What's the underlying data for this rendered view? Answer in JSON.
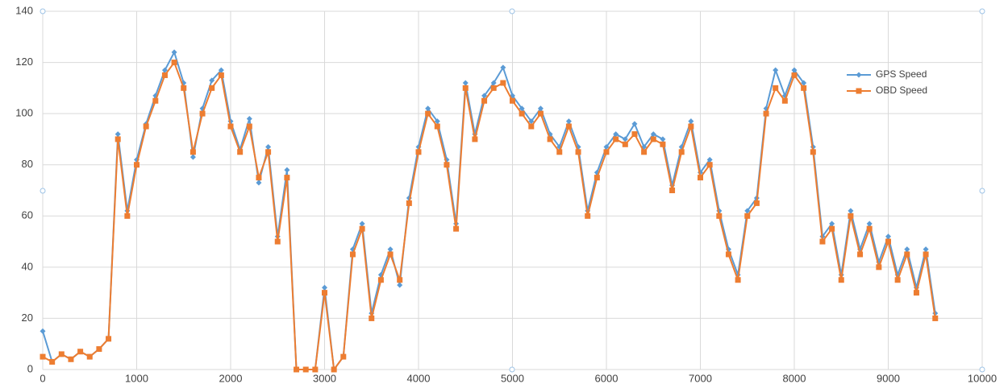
{
  "chart_data": {
    "type": "line",
    "x": [
      0,
      100,
      200,
      300,
      400,
      500,
      600,
      700,
      800,
      900,
      1000,
      1100,
      1200,
      1300,
      1400,
      1500,
      1600,
      1700,
      1800,
      1900,
      2000,
      2100,
      2200,
      2300,
      2400,
      2500,
      2600,
      2700,
      2800,
      2900,
      3000,
      3100,
      3200,
      3300,
      3400,
      3500,
      3600,
      3700,
      3800,
      3900,
      4000,
      4100,
      4200,
      4300,
      4400,
      4500,
      4600,
      4700,
      4800,
      4900,
      5000,
      5100,
      5200,
      5300,
      5400,
      5500,
      5600,
      5700,
      5800,
      5900,
      6000,
      6100,
      6200,
      6300,
      6400,
      6500,
      6600,
      6700,
      6800,
      6900,
      7000,
      7100,
      7200,
      7300,
      7400,
      7500,
      7600,
      7700,
      7800,
      7900,
      8000,
      8100,
      8200,
      8300,
      8400,
      8500,
      8600,
      8700,
      8800,
      8900,
      9000,
      9100,
      9200,
      9300,
      9400,
      9500
    ],
    "series": [
      {
        "name": "GPS Speed",
        "color": "#5b9bd5",
        "marker": "diamond",
        "values": [
          15,
          3,
          6,
          4,
          7,
          5,
          8,
          12,
          92,
          62,
          82,
          96,
          107,
          117,
          124,
          112,
          83,
          102,
          113,
          117,
          97,
          86,
          98,
          73,
          87,
          52,
          78,
          0,
          0,
          0,
          32,
          0,
          5,
          47,
          57,
          22,
          37,
          47,
          33,
          67,
          87,
          102,
          97,
          82,
          57,
          112,
          92,
          107,
          112,
          118,
          107,
          102,
          97,
          102,
          92,
          87,
          97,
          87,
          62,
          77,
          87,
          92,
          90,
          96,
          87,
          92,
          90,
          72,
          87,
          97,
          77,
          82,
          62,
          47,
          37,
          62,
          67,
          102,
          117,
          107,
          117,
          112,
          87,
          52,
          57,
          37,
          62,
          47,
          57,
          42,
          52,
          37,
          47,
          32,
          47,
          22
        ]
      },
      {
        "name": "OBD Speed",
        "color": "#ed7d31",
        "marker": "square",
        "values": [
          5,
          3,
          6,
          4,
          7,
          5,
          8,
          12,
          90,
          60,
          80,
          95,
          105,
          115,
          120,
          110,
          85,
          100,
          110,
          115,
          95,
          85,
          95,
          75,
          85,
          50,
          75,
          0,
          0,
          0,
          30,
          0,
          5,
          45,
          55,
          20,
          35,
          45,
          35,
          65,
          85,
          100,
          95,
          80,
          55,
          110,
          90,
          105,
          110,
          112,
          105,
          100,
          95,
          100,
          90,
          85,
          95,
          85,
          60,
          75,
          85,
          90,
          88,
          92,
          85,
          90,
          88,
          70,
          85,
          95,
          75,
          80,
          60,
          45,
          35,
          60,
          65,
          100,
          110,
          105,
          115,
          110,
          85,
          50,
          55,
          35,
          60,
          45,
          55,
          40,
          50,
          35,
          45,
          30,
          45,
          20
        ]
      }
    ],
    "xlim": [
      0,
      10000
    ],
    "xticks": [
      0,
      1000,
      2000,
      3000,
      4000,
      5000,
      6000,
      7000,
      8000,
      9000,
      10000
    ],
    "ylim": [
      0,
      140
    ],
    "yticks": [
      0,
      20,
      40,
      60,
      80,
      100,
      120,
      140
    ],
    "grid": true,
    "legend": "right"
  }
}
